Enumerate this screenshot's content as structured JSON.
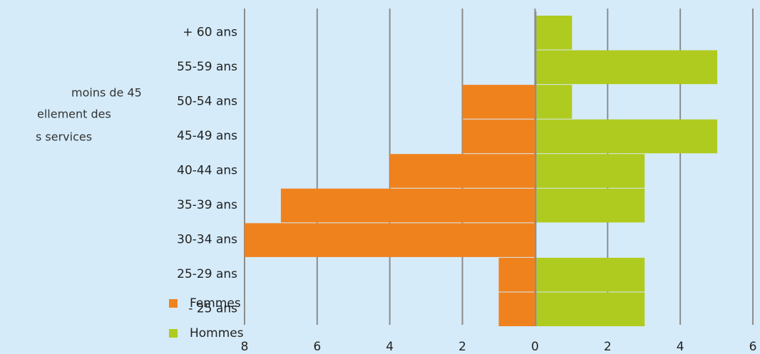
{
  "text_fragments": [
    "moins de 45",
    "ellement des",
    "s services"
  ],
  "chart_data": {
    "type": "bar",
    "orientation": "horizontal",
    "categories": [
      "+ 60 ans",
      "55-59 ans",
      "50-54 ans",
      "45-49 ans",
      "40-44 ans",
      "35-39 ans",
      "30-34 ans",
      "25-29 ans",
      "- 25 ans"
    ],
    "series": [
      {
        "name": "Femmes",
        "color": "#f0821e",
        "values": [
          0,
          0,
          -2,
          -2,
          -4,
          -7,
          -8,
          -1,
          -1
        ]
      },
      {
        "name": "Hommes",
        "color": "#b0cb1f",
        "values": [
          1,
          5,
          1,
          5,
          3,
          3,
          0,
          3,
          3
        ]
      }
    ],
    "xlim": [
      -8,
      6
    ],
    "xticks": [
      {
        "value": -8,
        "label": "8"
      },
      {
        "value": -6,
        "label": "6"
      },
      {
        "value": -4,
        "label": "4"
      },
      {
        "value": -2,
        "label": "2"
      },
      0,
      2,
      4,
      6
    ],
    "grid": true,
    "legend": "bottom-left"
  }
}
